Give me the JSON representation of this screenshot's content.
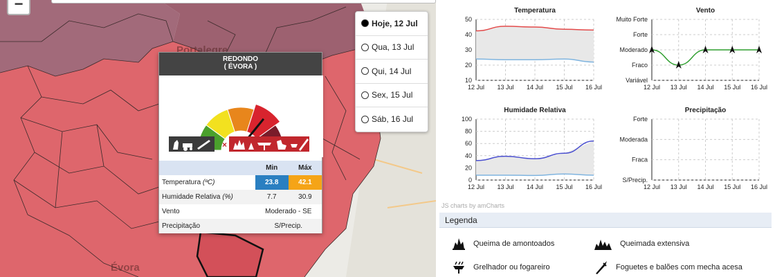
{
  "map": {
    "zoom_in_label": "−",
    "region_labels": [
      "Portalegre",
      "Évora"
    ]
  },
  "days": [
    {
      "label": "Hoje, 12 Jul",
      "active": true
    },
    {
      "label": "Qua, 13 Jul",
      "active": false
    },
    {
      "label": "Qui, 14 Jul",
      "active": false
    },
    {
      "label": "Sex, 15 Jul",
      "active": false
    },
    {
      "label": "Sáb, 16 Jul",
      "active": false
    }
  ],
  "popup": {
    "name": "REDONDO",
    "district": "( ÉVORA )",
    "risk_level": 4,
    "risk_colors": [
      "#4aa02c",
      "#f2e11f",
      "#e8861c",
      "#d8242e",
      "#7a1c2a"
    ],
    "col_min": "Min",
    "col_max": "Máx",
    "rows": {
      "temp_label": "Temperatura",
      "temp_unit": "(ºC)",
      "temp_min": "23.8",
      "temp_max": "42.1",
      "hum_label": "Humidade Relativa",
      "hum_unit": "(%)",
      "hum_min": "7.7",
      "hum_max": "30.9",
      "wind_label": "Vento",
      "wind_value": "Moderado - SE",
      "precip_label": "Precipitação",
      "precip_value": "S/Precip."
    }
  },
  "chart_data": [
    {
      "type": "area",
      "title": "Temperatura",
      "x": [
        "12 Jul",
        "13 Jul",
        "14 Jul",
        "15 Jul",
        "16 Jul"
      ],
      "ylim": [
        10,
        50
      ],
      "yticks": [
        "50",
        "40",
        "30",
        "20",
        "10"
      ],
      "series": [
        {
          "name": "",
          "color": "#e34a4a",
          "values": [
            42.5,
            45.5,
            45,
            43.5,
            43
          ]
        },
        {
          "name": "",
          "color": "#7fb4df",
          "values": [
            24,
            23.5,
            23.5,
            24,
            22
          ]
        }
      ]
    },
    {
      "type": "line",
      "title": "Vento",
      "x": [
        "12 Jul",
        "13 Jul",
        "14 Jul",
        "15 Jul",
        "16 Jul"
      ],
      "yticks": [
        "Muito Forte",
        "Forte",
        "Moderado",
        "Fraco",
        "Variável"
      ],
      "series": [
        {
          "name": "",
          "color": "#2e9e2e",
          "values": [
            "Moderado",
            "Fraco",
            "Moderado",
            "Moderado",
            "Moderado"
          ]
        }
      ]
    },
    {
      "type": "area",
      "title": "Humidade Relativa",
      "x": [
        "12 Jul",
        "13 Jul",
        "14 Jul",
        "15 Jul",
        "16 Jul"
      ],
      "ylim": [
        0,
        100
      ],
      "yticks": [
        "100",
        "80",
        "60",
        "40",
        "20",
        "0"
      ],
      "series": [
        {
          "name": "",
          "color": "#4a4fd0",
          "values": [
            32,
            39,
            35,
            44,
            64
          ]
        },
        {
          "name": "",
          "color": "#7fb4df",
          "values": [
            8,
            8,
            7.5,
            10,
            8
          ]
        }
      ]
    },
    {
      "type": "line",
      "title": "Precipitação",
      "x": [
        "12 Jul",
        "13 Jul",
        "14 Jul",
        "15 Jul",
        "16 Jul"
      ],
      "yticks": [
        "Forte",
        "Moderada",
        "Fraca",
        "S/Precip."
      ],
      "series": []
    }
  ],
  "credit": "JS charts by amCharts",
  "legend": {
    "title": "Legenda",
    "items": [
      {
        "label": "Queima de amontoados",
        "icon": "pile-burning-icon"
      },
      {
        "label": "Queimada extensiva",
        "icon": "extensive-burning-icon"
      },
      {
        "label": "Grelhador ou fogareiro",
        "icon": "grill-icon"
      },
      {
        "label": "Foguetes e balões com mecha acesa",
        "icon": "rocket-icon"
      }
    ]
  }
}
